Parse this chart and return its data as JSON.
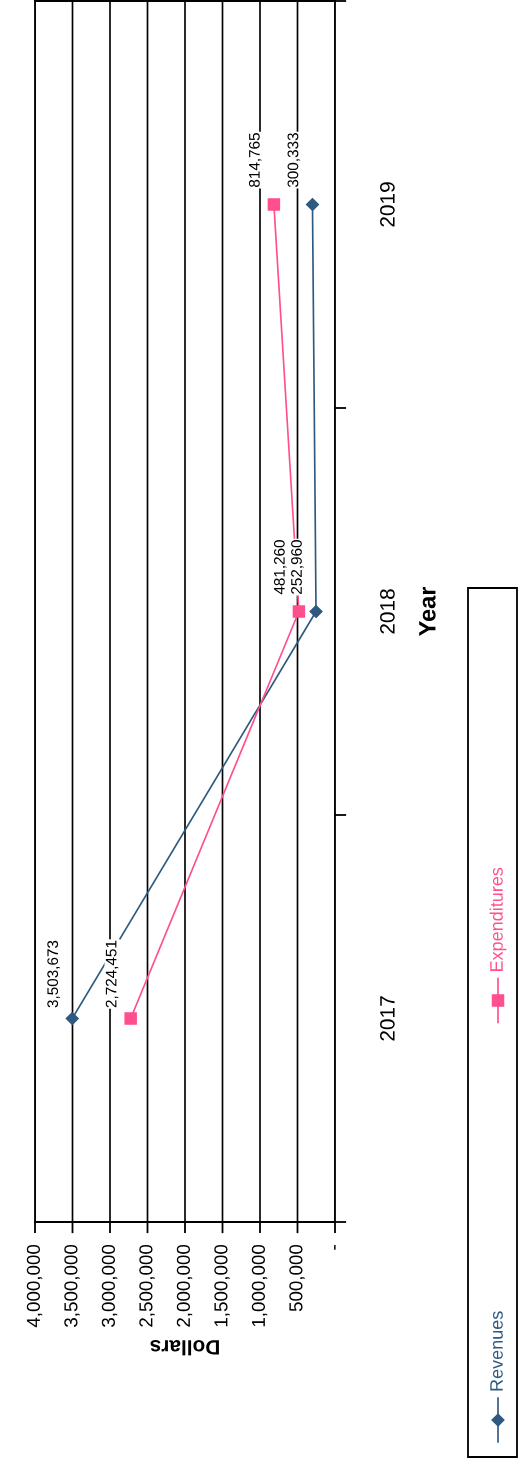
{
  "chart_data": {
    "type": "line",
    "xlabel": "Dollars",
    "ylabel": "Year",
    "series": [
      {
        "name": "Revenues",
        "color": "#2e5a80",
        "marker": "diamond",
        "x": [
          3503673,
          252960,
          300333
        ],
        "values": [
          2017,
          2018,
          2019
        ]
      },
      {
        "name": "Expenditures",
        "color": "#ff4f8f",
        "marker": "square",
        "x": [
          2724451,
          481260,
          814765
        ],
        "values": [
          2017,
          2018,
          2019
        ]
      }
    ],
    "xlim": [
      4000000,
      0
    ],
    "xticks": [
      {
        "value": 4000000,
        "label": "4,000,000"
      },
      {
        "value": 3500000,
        "label": "3,500,000"
      },
      {
        "value": 3000000,
        "label": "3,000,000"
      },
      {
        "value": 2500000,
        "label": "2,500,000"
      },
      {
        "value": 2000000,
        "label": "2,000,000"
      },
      {
        "value": 1500000,
        "label": "1,500,000"
      },
      {
        "value": 1000000,
        "label": "1,000,000"
      },
      {
        "value": 500000,
        "label": "500,000"
      },
      {
        "value": 0,
        "label": "-"
      }
    ],
    "ylim": [
      2016.5,
      2019.5
    ],
    "yticks": [
      2017,
      2018,
      2019
    ],
    "annotations": [
      {
        "text": "3,503,673",
        "x": 3503673,
        "y": 2017
      },
      {
        "text": "252,960",
        "x": 252960,
        "y": 2018
      },
      {
        "text": "300,333",
        "x": 300333,
        "y": 2019
      },
      {
        "text": "2,724,451",
        "x": 2724451,
        "y": 2017
      },
      {
        "text": "481,260",
        "x": 481260,
        "y": 2018
      },
      {
        "text": "814,765",
        "x": 814765,
        "y": 2019
      }
    ],
    "grid": "x",
    "legend": "right"
  }
}
